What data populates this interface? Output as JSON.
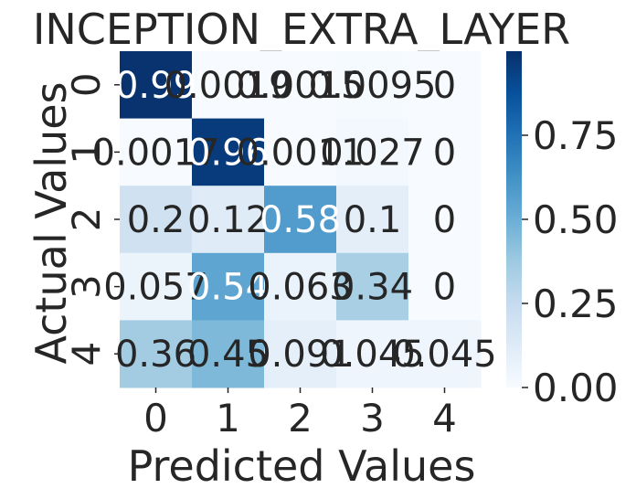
{
  "chart_data": {
    "type": "heatmap",
    "title": "INCEPTION_EXTRA_LAYER",
    "xlabel": "Predicted Values",
    "ylabel": "Actual Values",
    "x_categories": [
      "0",
      "1",
      "2",
      "3",
      "4"
    ],
    "y_categories": [
      "0",
      "1",
      "2",
      "3",
      "4"
    ],
    "values": [
      [
        0.99,
        0.0019,
        0.0015,
        0.0095,
        0
      ],
      [
        0.0017,
        0.96,
        0.0011,
        0.027,
        0
      ],
      [
        0.2,
        0.12,
        0.58,
        0.1,
        0
      ],
      [
        0.057,
        0.54,
        0.063,
        0.34,
        0
      ],
      [
        0.36,
        0.45,
        0.091,
        0.045,
        0.045
      ]
    ],
    "cell_labels": [
      [
        "0.99",
        "0.0019",
        "0.0015",
        "0.0095",
        "0"
      ],
      [
        "0.0017",
        "0.96",
        "0.0011",
        "0.027",
        "0"
      ],
      [
        "0.2",
        "0.12",
        "0.58",
        "0.1",
        "0"
      ],
      [
        "0.057",
        "0.54",
        "0.063",
        "0.34",
        "0"
      ],
      [
        "0.36",
        "0.45",
        "0.091",
        "0.045",
        "0.045"
      ]
    ],
    "colormap": "Blues",
    "colorbar": {
      "range": [
        0,
        1
      ],
      "ticks": [
        0.0,
        0.25,
        0.5,
        0.75
      ],
      "tick_labels": [
        "0.00",
        "0.25",
        "0.50",
        "0.75"
      ]
    },
    "grid": false,
    "legend": "colorbar-right"
  }
}
